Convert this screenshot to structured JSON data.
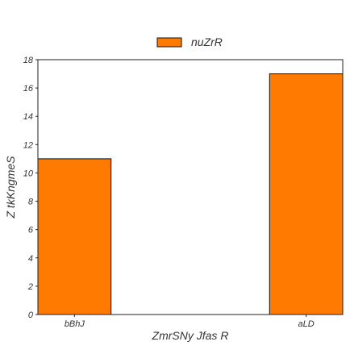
{
  "chart_data": {
    "type": "bar",
    "categories": [
      "bBhJ",
      "aLD"
    ],
    "series": [
      {
        "name": "nuZrR",
        "values": [
          11,
          17
        ]
      }
    ],
    "xlabel": "ZmrSNy Jfas R",
    "ylabel": "Z tkKngmeS",
    "ylim": [
      0,
      18
    ],
    "yticks": [
      0,
      2,
      4,
      6,
      8,
      10,
      12,
      14,
      16,
      18
    ],
    "grid": false,
    "legend_position": "top-center",
    "colors": {
      "bar": "#ff7a00",
      "bar_edge": "#111111",
      "axis": "#222222",
      "text": "#333333"
    }
  }
}
